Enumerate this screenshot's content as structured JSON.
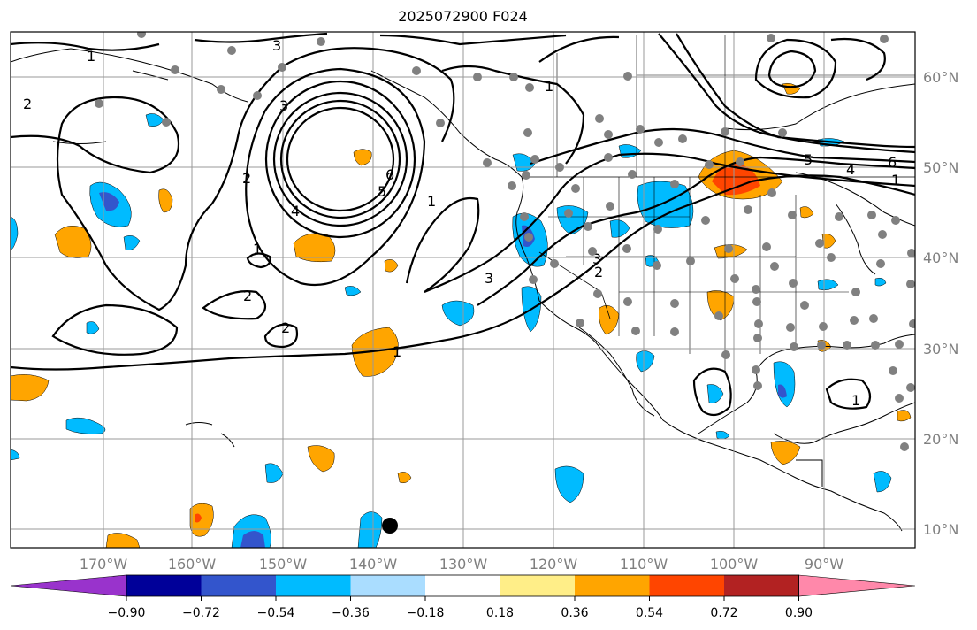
{
  "title": "2025072900 F024",
  "lon_labels": [
    "170°W",
    "160°W",
    "150°W",
    "140°W",
    "130°W",
    "120°W",
    "110°W",
    "100°W",
    "90°W"
  ],
  "lat_labels": [
    "60°N",
    "50°N",
    "40°N",
    "30°N",
    "20°N",
    "10°N"
  ],
  "colorbar": {
    "tick_labels": [
      "−0.90",
      "−0.72",
      "−0.54",
      "−0.36",
      "−0.18",
      "0.18",
      "0.36",
      "0.54",
      "0.72",
      "0.90"
    ],
    "colors": [
      "#9933cc",
      "#000099",
      "#3355cc",
      "#00bbff",
      "#aaddff",
      "#ffffff",
      "#ffee88",
      "#ffa500",
      "#ff4500",
      "#b22222",
      "#ff88aa"
    ]
  },
  "contour_labels": [
    "1",
    "2",
    "3",
    "4",
    "5",
    "6",
    "1",
    "2",
    "3",
    "1",
    "2",
    "3",
    "4",
    "5",
    "6",
    "1",
    "1",
    "2",
    "2",
    "3",
    "1",
    "1"
  ],
  "shading_colors": {
    "pos1": "#ffa500",
    "pos2": "#ff4500",
    "neg1": "#00bbff",
    "neg2": "#3355cc"
  }
}
